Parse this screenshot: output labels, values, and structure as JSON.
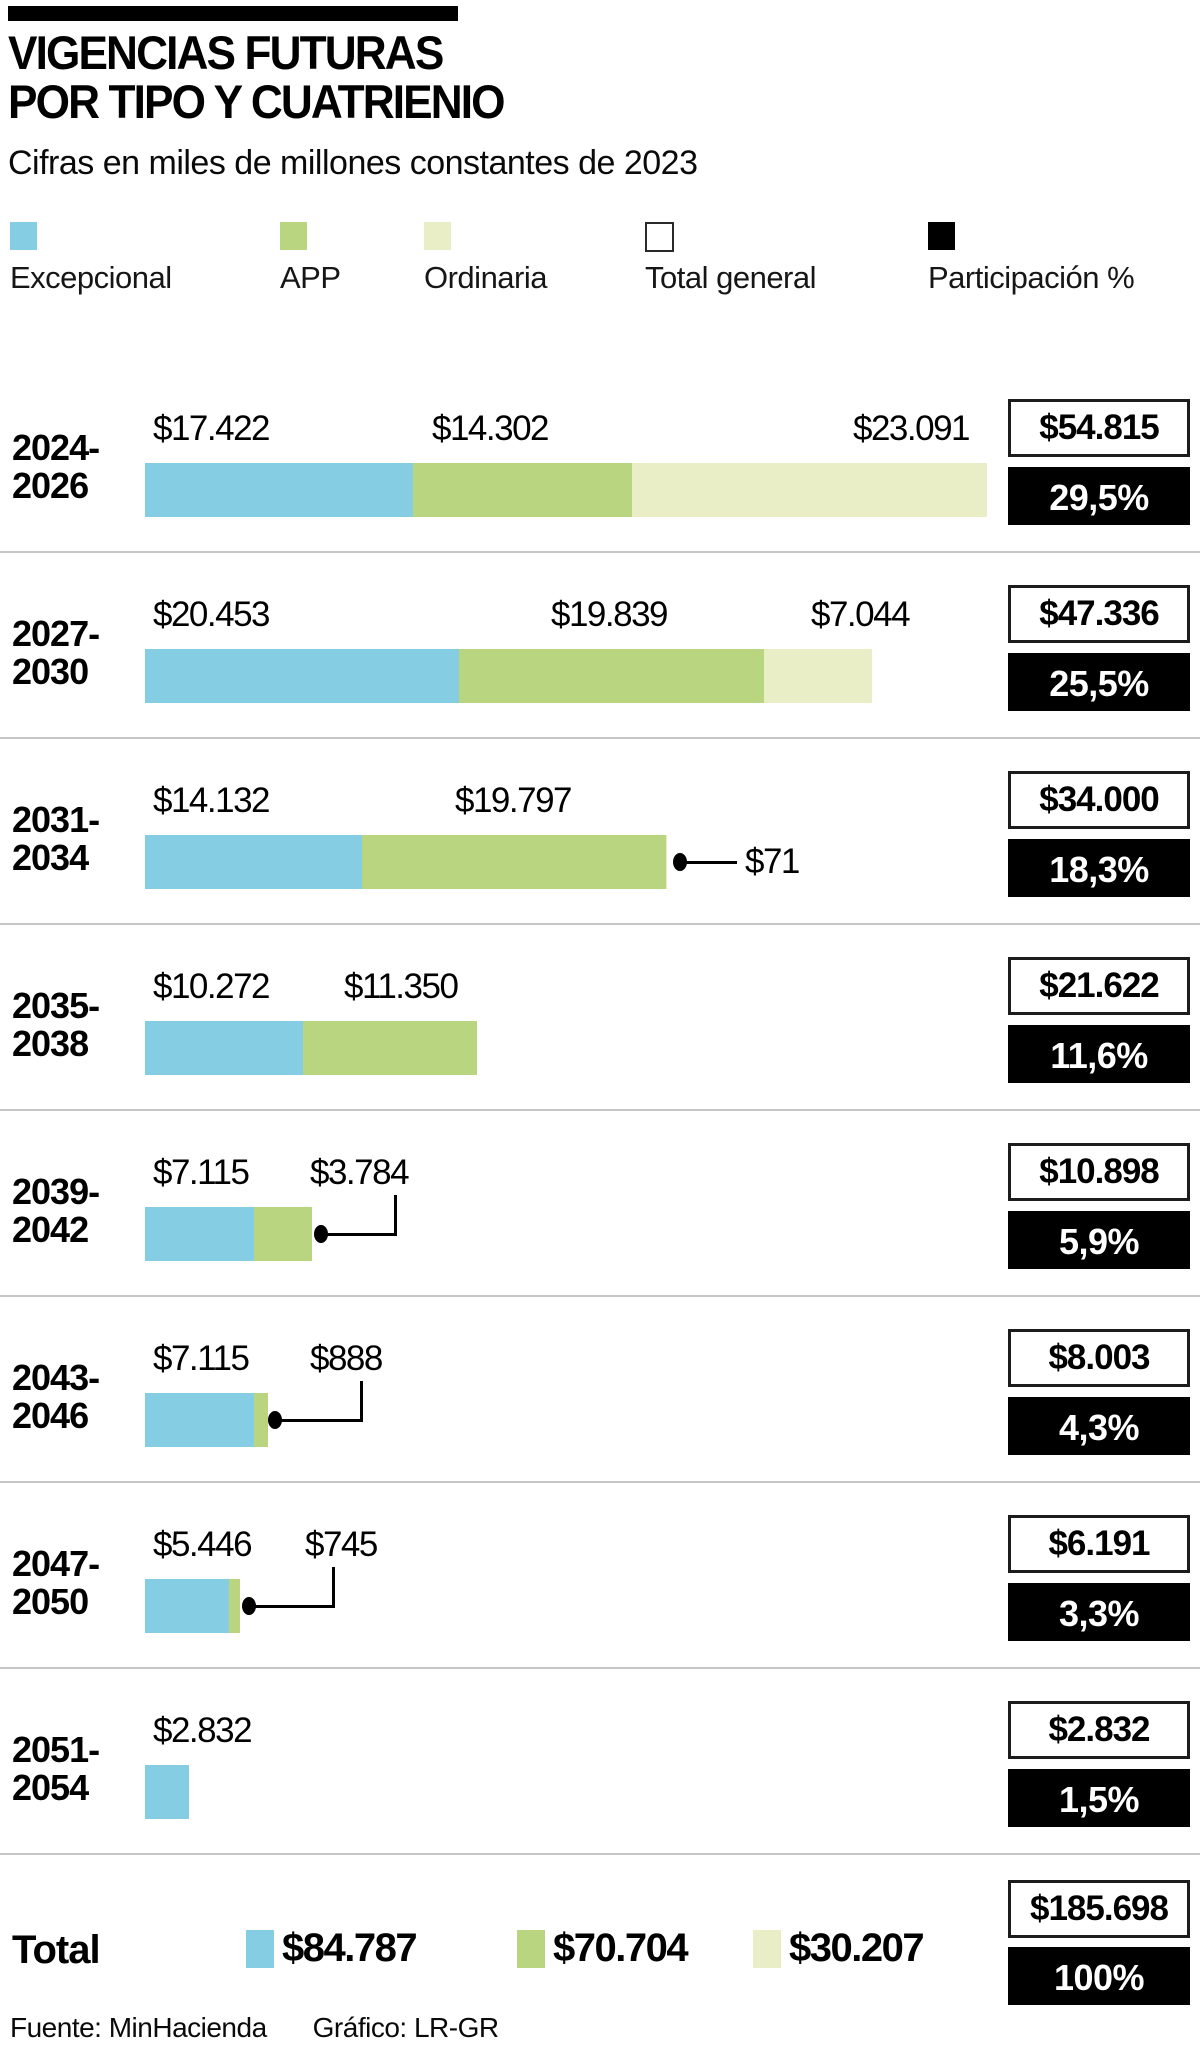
{
  "header": {
    "title_line1": "VIGENCIAS FUTURAS",
    "title_line2": "POR TIPO Y CUATRIENIO",
    "subtitle": "Cifras en miles de millones constantes de 2023"
  },
  "legend": {
    "items": [
      {
        "label": "Excepcional",
        "color": "#85CDE2",
        "swatch": "fill"
      },
      {
        "label": "APP",
        "color": "#BAD580",
        "swatch": "fill"
      },
      {
        "label": "Ordinaria",
        "color": "#EAEEC6",
        "swatch": "fill"
      },
      {
        "label": "Total general",
        "color": "#FFFFFF",
        "swatch": "outline"
      },
      {
        "label": "Participación %",
        "color": "#000000",
        "swatch": "fill"
      }
    ]
  },
  "chart_data": {
    "type": "bar",
    "orientation": "horizontal",
    "stacked": true,
    "unit": "miles de millones de pesos constantes de 2023",
    "series_names": [
      "Excepcional",
      "APP",
      "Ordinaria"
    ],
    "categories": [
      "2024-2026",
      "2027-2030",
      "2031-2034",
      "2035-2038",
      "2039-2042",
      "2043-2046",
      "2047-2050",
      "2051-2054"
    ],
    "rows": [
      {
        "category": "2024-2026",
        "period_lines": [
          "2024-",
          "2026"
        ],
        "values": [
          17422,
          14302,
          23091
        ],
        "value_labels": [
          "$17.422",
          "$14.302",
          "$23.091"
        ],
        "total": "$54.815",
        "share": "29,5%"
      },
      {
        "category": "2027-2030",
        "period_lines": [
          "2027-",
          "2030"
        ],
        "values": [
          20453,
          19839,
          7044
        ],
        "value_labels": [
          "$20.453",
          "$19.839",
          "$7.044"
        ],
        "total": "$47.336",
        "share": "25,5%"
      },
      {
        "category": "2031-2034",
        "period_lines": [
          "2031-",
          "2034"
        ],
        "values": [
          14132,
          19797,
          71
        ],
        "value_labels": [
          "$14.132",
          "$19.797"
        ],
        "callout": {
          "label": "$71",
          "style": "side"
        },
        "total": "$34.000",
        "share": "18,3%"
      },
      {
        "category": "2035-2038",
        "period_lines": [
          "2035-",
          "2038"
        ],
        "values": [
          10272,
          11350
        ],
        "value_labels": [
          "$10.272",
          "$11.350"
        ],
        "total": "$21.622",
        "share": "11,6%"
      },
      {
        "category": "2039-2042",
        "period_lines": [
          "2039-",
          "2042"
        ],
        "values": [
          7115,
          3784
        ],
        "value_labels": [
          "$7.115"
        ],
        "callout": {
          "label": "$3.784",
          "style": "elbow"
        },
        "total": "$10.898",
        "share": "5,9%"
      },
      {
        "category": "2043-2046",
        "period_lines": [
          "2043-",
          "2046"
        ],
        "values": [
          7115,
          888
        ],
        "value_labels": [
          "$7.115"
        ],
        "callout": {
          "label": "$888",
          "style": "elbow"
        },
        "total": "$8.003",
        "share": "4,3%"
      },
      {
        "category": "2047-2050",
        "period_lines": [
          "2047-",
          "2050"
        ],
        "values": [
          5446,
          745
        ],
        "value_labels": [
          "$5.446"
        ],
        "callout": {
          "label": "$745",
          "style": "elbow"
        },
        "total": "$6.191",
        "share": "3,3%"
      },
      {
        "category": "2051-2054",
        "period_lines": [
          "2051-",
          "2054"
        ],
        "values": [
          2832
        ],
        "value_labels": [
          "$2.832"
        ],
        "total": "$2.832",
        "share": "1,5%"
      }
    ],
    "total_row": {
      "label": "Total",
      "series_totals": [
        "$84.787",
        "$70.704",
        "$30.207"
      ],
      "total": "$185.698",
      "share": "100%"
    }
  },
  "footer": {
    "source": "Fuente: MinHacienda",
    "credit": "Gráfico: LR-GR"
  }
}
